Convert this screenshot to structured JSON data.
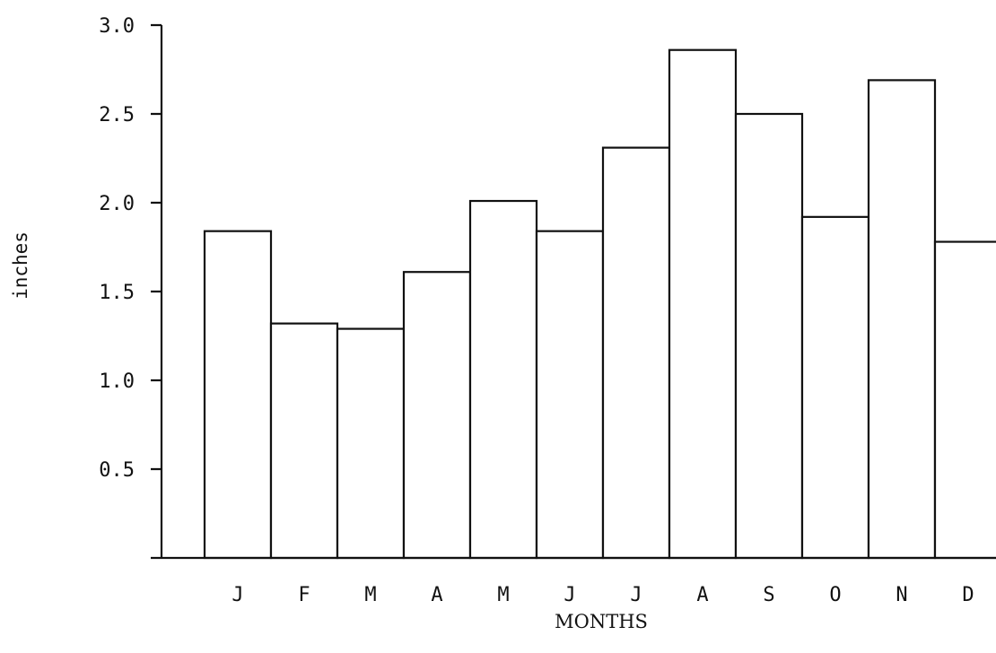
{
  "chart_data": {
    "type": "bar",
    "title": "",
    "xlabel": "MONTHS",
    "ylabel": "inches",
    "categories": [
      "J",
      "F",
      "M",
      "A",
      "M",
      "J",
      "J",
      "A",
      "S",
      "O",
      "N",
      "D"
    ],
    "values": [
      1.84,
      1.32,
      1.29,
      1.61,
      2.01,
      1.84,
      2.31,
      2.86,
      2.5,
      1.92,
      2.69,
      1.78
    ],
    "yticks": [
      "3.0",
      "2.5",
      "2.0",
      "1.5",
      "1.0",
      "0.5"
    ],
    "ytick_values": [
      3.0,
      2.5,
      2.0,
      1.5,
      1.0,
      0.5
    ],
    "ylim": [
      0,
      3.0
    ],
    "grid": false,
    "legend": "none",
    "colors": {
      "bar_fill": "#ffffff",
      "bar_stroke": "#111111"
    }
  }
}
